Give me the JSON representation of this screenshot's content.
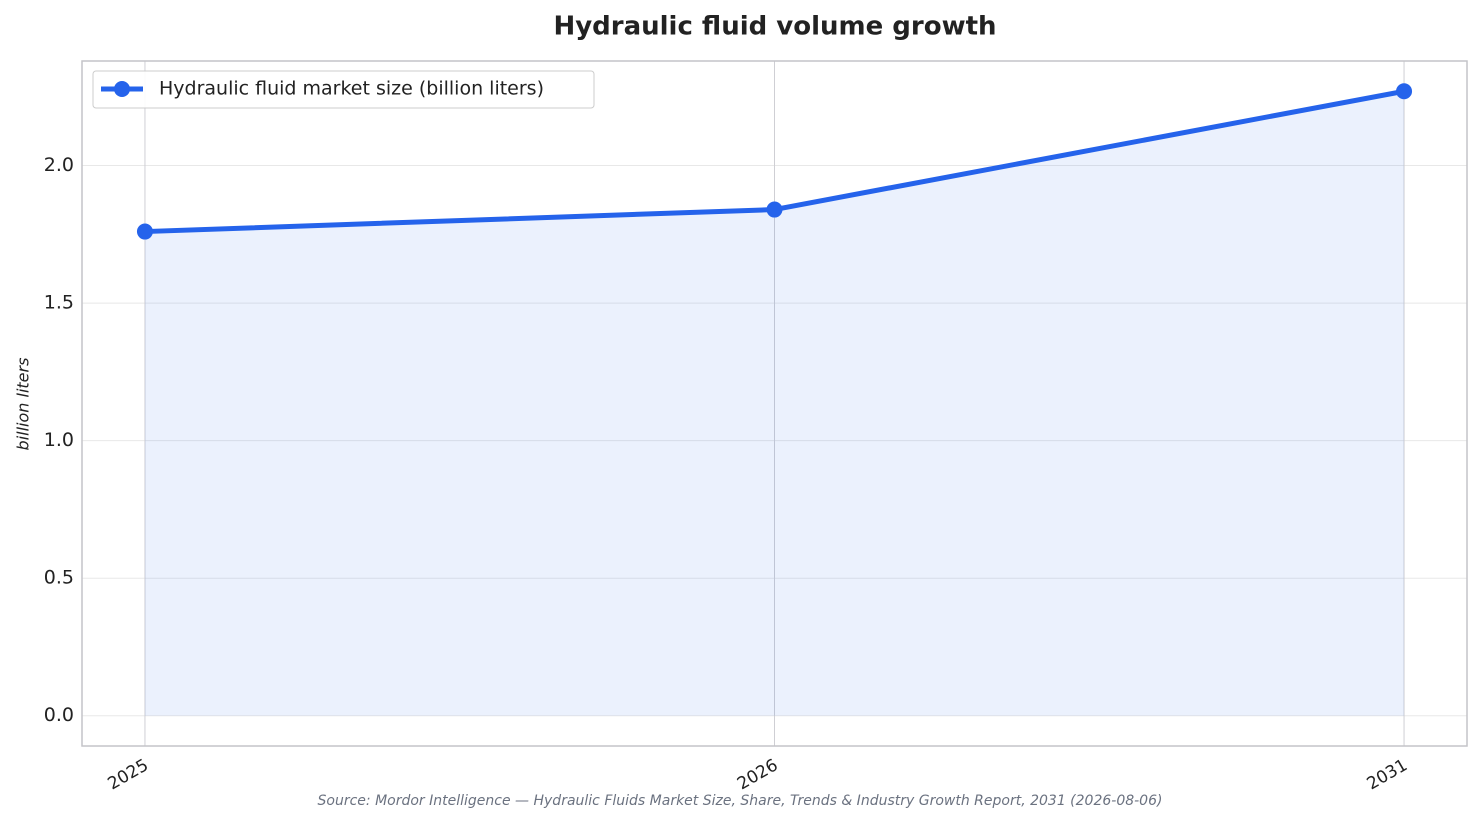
{
  "chart_data": {
    "type": "line",
    "title": "Hydraulic fluid volume growth",
    "categories": [
      "2025",
      "2026",
      "2031"
    ],
    "series": [
      {
        "name": "Hydraulic fluid market size (billion liters)",
        "color": "#2563eb",
        "values": [
          1.76,
          1.84,
          2.27
        ]
      }
    ],
    "y_label": "billion liters",
    "ylim": [
      -0.11,
      2.38
    ],
    "yticks": [
      {
        "value": 0,
        "label": "0.0"
      },
      {
        "value": 0.5,
        "label": "0.5"
      },
      {
        "value": 1,
        "label": "1.0"
      },
      {
        "value": 1.5,
        "label": "1.5"
      },
      {
        "value": 2,
        "label": "2.0"
      }
    ],
    "grid": true,
    "legend": "upper left",
    "area_fill": true,
    "source": "Source: Mordor Intelligence — Hydraulic Fluids Market Size, Share, Trends & Industry Growth Report, 2031 (2026-08-06)"
  }
}
